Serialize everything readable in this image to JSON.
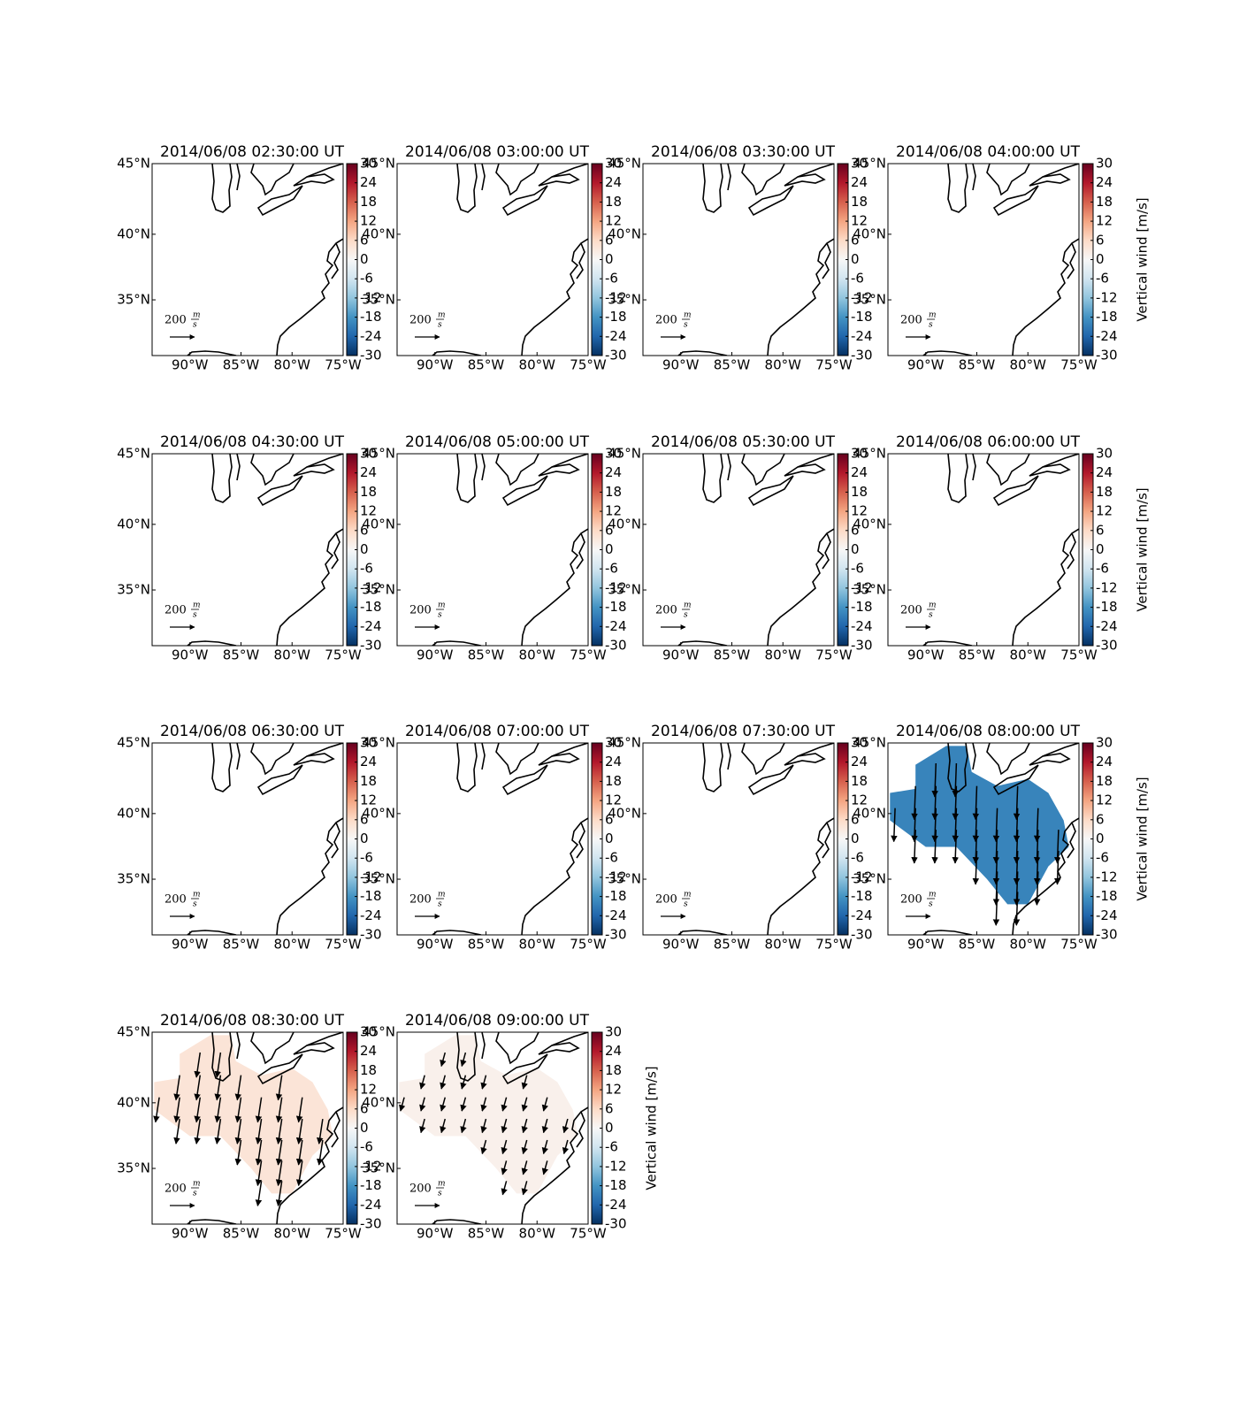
{
  "panels": [
    {
      "title": "2014/06/08 02:30:00 UT"
    },
    {
      "title": "2014/06/08 03:00:00 UT"
    },
    {
      "title": "2014/06/08 03:30:00 UT"
    },
    {
      "title": "2014/06/08 04:00:00 UT"
    },
    {
      "title": "2014/06/08 04:30:00 UT"
    },
    {
      "title": "2014/06/08 05:00:00 UT"
    },
    {
      "title": "2014/06/08 05:30:00 UT"
    },
    {
      "title": "2014/06/08 06:00:00 UT"
    },
    {
      "title": "2014/06/08 06:30:00 UT"
    },
    {
      "title": "2014/06/08 07:00:00 UT"
    },
    {
      "title": "2014/06/08 07:30:00 UT"
    },
    {
      "title": "2014/06/08 08:00:00 UT",
      "w": -20,
      "wind": {
        "u": -10,
        "v": -270
      }
    },
    {
      "title": "2014/06/08 08:30:00 UT",
      "w": 4,
      "wind": {
        "u": -30,
        "v": -200
      }
    },
    {
      "title": "2014/06/08 09:00:00 UT",
      "w": 1.5,
      "wind": {
        "u": -30,
        "v": -110
      }
    }
  ],
  "xlim": [
    -93.7,
    -75
  ],
  "ylim": [
    30.5,
    45
  ],
  "xticks": [
    {
      "value": -90,
      "label": "90°W"
    },
    {
      "value": -85,
      "label": "85°W"
    },
    {
      "value": -80,
      "label": "80°W"
    },
    {
      "value": -75,
      "label": "75°W"
    }
  ],
  "yticks": [
    {
      "value": 45,
      "label": "45°N"
    },
    {
      "value": 40,
      "label": "40°N"
    },
    {
      "value": 35,
      "label": "35°N"
    }
  ],
  "colorbar": {
    "label": "Vertical wind [m/s]",
    "clim": [
      -30,
      30
    ],
    "ticks": [
      30,
      24,
      18,
      12,
      6,
      0,
      -6,
      -12,
      -18,
      -24,
      -30
    ],
    "colormap": [
      "#053061",
      "#2166ac",
      "#4393c3",
      "#92c5de",
      "#d1e5f0",
      "#f7f7f7",
      "#fddbc7",
      "#f4a582",
      "#d6604d",
      "#b2182b",
      "#67001f"
    ]
  },
  "quiver_key": {
    "value": 200,
    "unit_top": "m",
    "unit_bottom": "s"
  }
}
